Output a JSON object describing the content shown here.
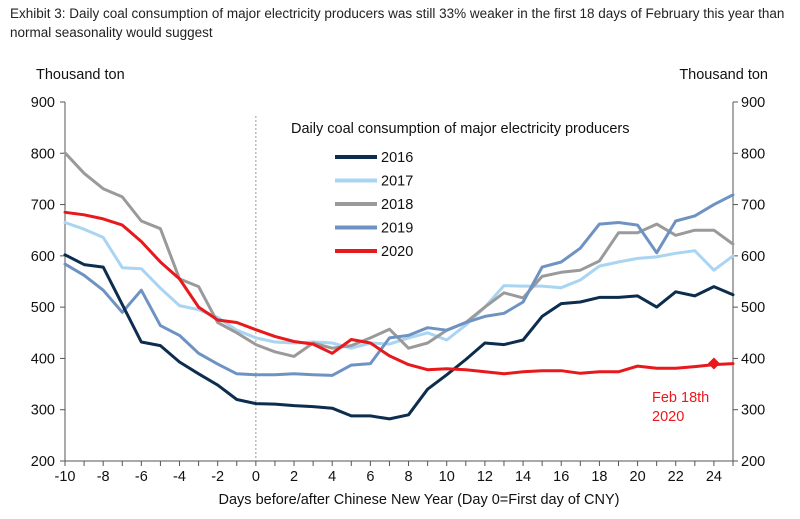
{
  "exhibit_title": "Exhibit 3: Daily coal consumption of major electricity producers was still 33% weaker in the first 18 days of February this year than normal seasonality would suggest",
  "colors": {
    "s2016": "#0d2d4f",
    "s2017": "#a9d4f2",
    "s2018": "#9a9a9a",
    "s2019": "#6e93c3",
    "s2020": "#e8191c",
    "axis": "#555555",
    "zero_line": "#999999"
  },
  "chart_data": {
    "type": "line",
    "title": "Daily coal consumption of major electricity producers",
    "xlabel": "Days before/after Chinese New Year (Day 0=First day of CNY)",
    "ylabel_left": "Thousand ton",
    "ylabel_right": "Thousand ton",
    "xlim": [
      -10,
      25
    ],
    "ylim": [
      200,
      900
    ],
    "x_ticks": [
      -10,
      -8,
      -6,
      -4,
      -2,
      0,
      2,
      4,
      6,
      8,
      10,
      12,
      14,
      16,
      18,
      20,
      22,
      24
    ],
    "y_ticks": [
      200,
      300,
      400,
      500,
      600,
      700,
      800,
      900
    ],
    "legend_position": "top-center",
    "grid": false,
    "x": [
      -10,
      -9,
      -8,
      -7,
      -6,
      -5,
      -4,
      -3,
      -2,
      -1,
      0,
      1,
      2,
      3,
      4,
      5,
      6,
      7,
      8,
      9,
      10,
      11,
      12,
      13,
      14,
      15,
      16,
      17,
      18,
      19,
      20,
      21,
      22,
      23,
      24,
      25
    ],
    "series": [
      {
        "name": "2016",
        "values": [
          602,
          583,
          578,
          505,
          432,
          425,
          393,
          370,
          348,
          320,
          312,
          311,
          308,
          306,
          303,
          288,
          288,
          282,
          290,
          340,
          368,
          398,
          430,
          427,
          436,
          482,
          507,
          510,
          519,
          519,
          522,
          500,
          530,
          522,
          540,
          524
        ]
      },
      {
        "name": "2017",
        "values": [
          665,
          652,
          636,
          577,
          575,
          537,
          503,
          495,
          480,
          455,
          440,
          432,
          430,
          432,
          430,
          420,
          430,
          428,
          440,
          450,
          436,
          465,
          500,
          542,
          541,
          541,
          538,
          553,
          580,
          588,
          595,
          598,
          605,
          610,
          572,
          600
        ]
      },
      {
        "name": "2018",
        "values": [
          801,
          761,
          731,
          715,
          668,
          653,
          555,
          540,
          470,
          450,
          427,
          413,
          404,
          430,
          420,
          425,
          440,
          457,
          420,
          430,
          455,
          470,
          500,
          528,
          518,
          560,
          568,
          572,
          590,
          645,
          645,
          662,
          640,
          650,
          650,
          623
        ]
      },
      {
        "name": "2019",
        "values": [
          584,
          562,
          533,
          490,
          533,
          464,
          445,
          410,
          389,
          370,
          368,
          368,
          370,
          368,
          367,
          387,
          390,
          440,
          445,
          460,
          455,
          470,
          482,
          488,
          510,
          578,
          588,
          615,
          662,
          665,
          660,
          606,
          668,
          678,
          700,
          719
        ]
      },
      {
        "name": "2020",
        "values": [
          685,
          680,
          672,
          660,
          628,
          588,
          555,
          500,
          475,
          470,
          456,
          443,
          433,
          428,
          410,
          437,
          430,
          405,
          388,
          378,
          380,
          378,
          374,
          370,
          374,
          376,
          376,
          371,
          374,
          374,
          385,
          381,
          381,
          384,
          388,
          390
        ]
      }
    ],
    "annotations": [
      {
        "text_line1": "Feb 18th",
        "text_line2": "2020",
        "x": 24,
        "y": 390
      }
    ]
  }
}
